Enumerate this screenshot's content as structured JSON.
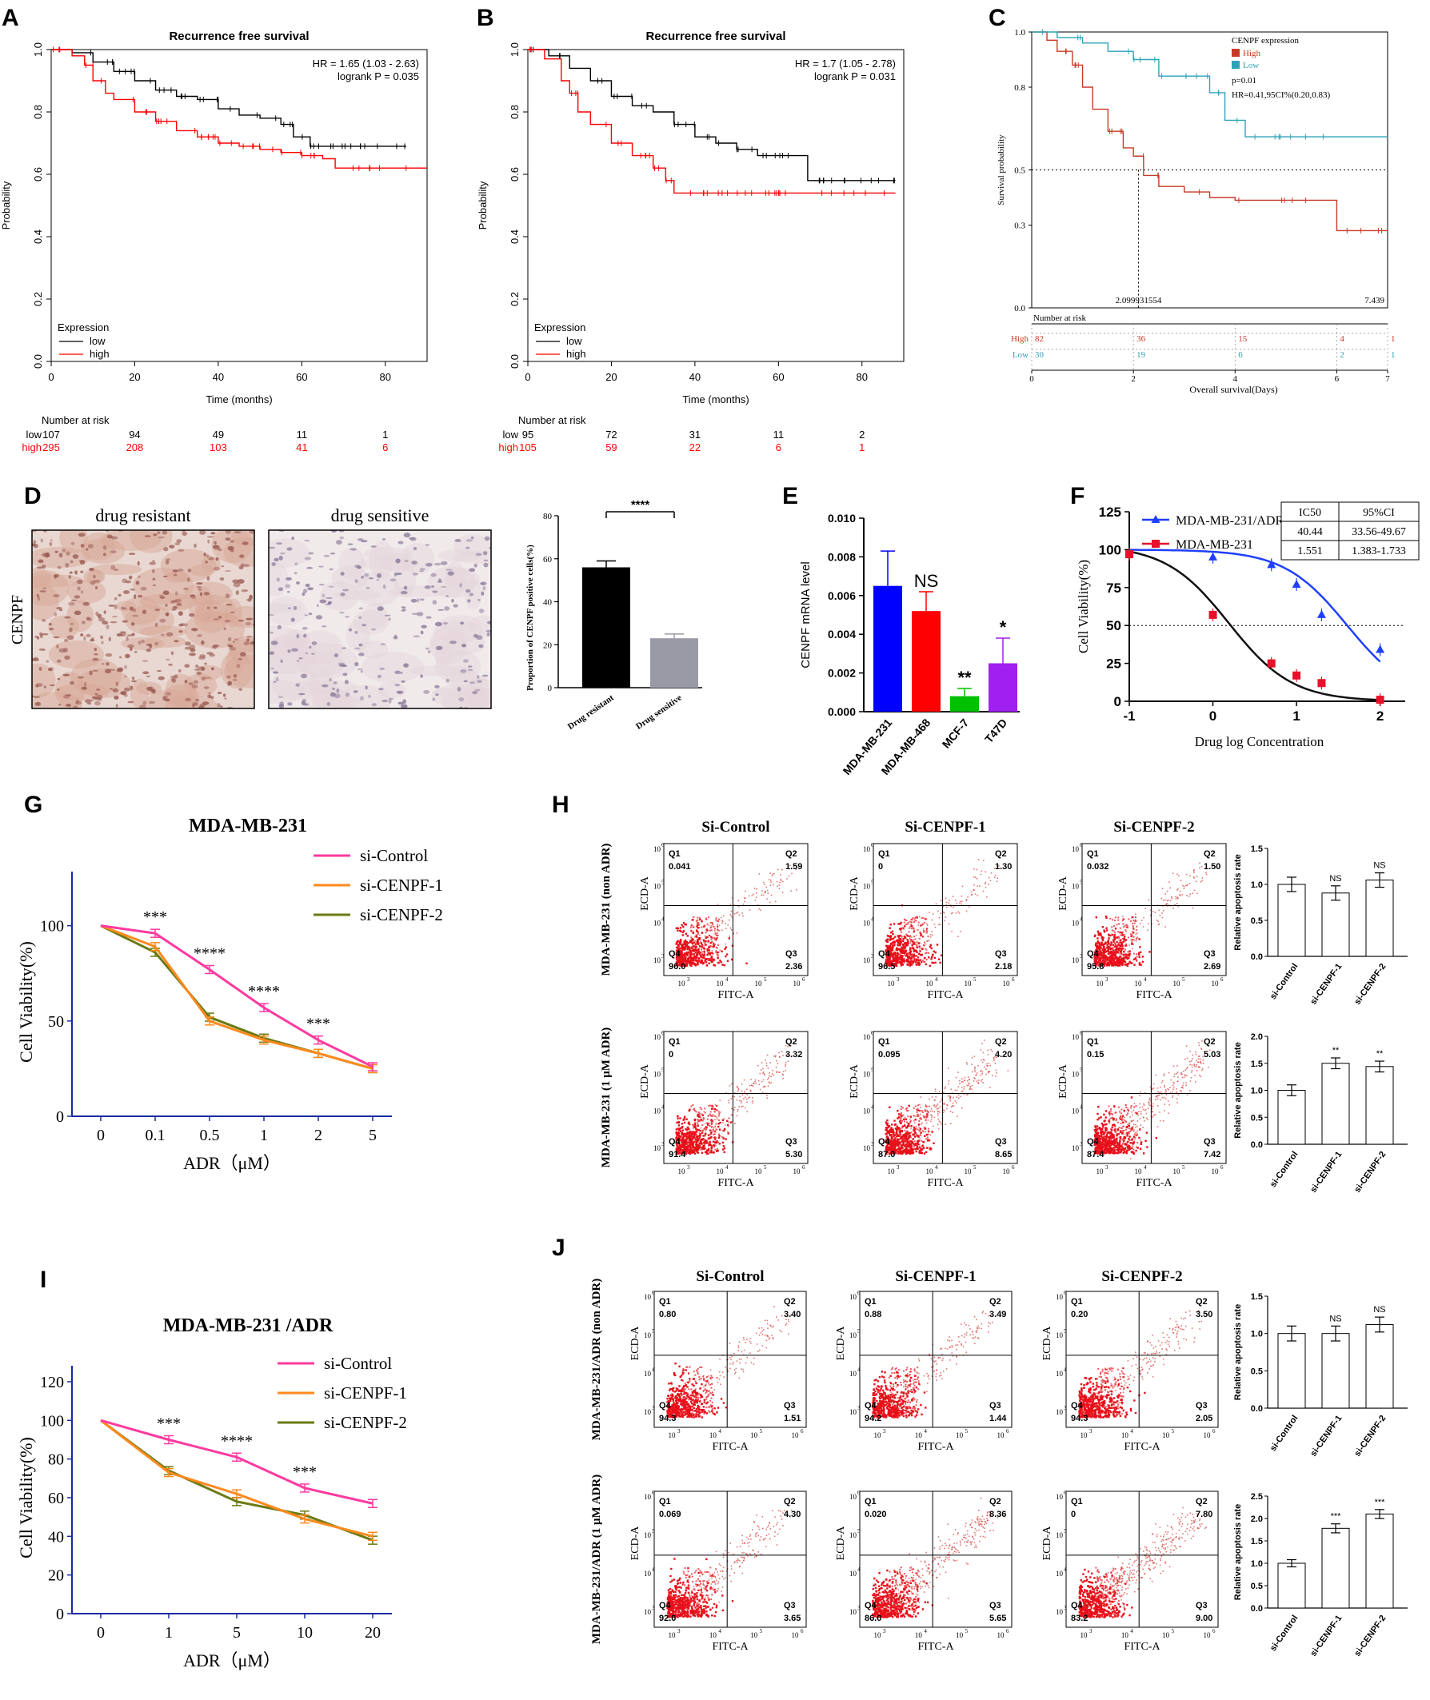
{
  "panels": {
    "A": {
      "letter": "A",
      "chart_data": {
        "type": "line",
        "title": "Recurrence free survival",
        "xlabel": "Time (months)",
        "ylabel": "Probability",
        "xlim": [
          0,
          90
        ],
        "ylim": [
          0,
          1
        ],
        "xticks": [
          "0",
          "20",
          "40",
          "60",
          "80"
        ],
        "yticks": [
          "0.0",
          "0.2",
          "0.4",
          "0.6",
          "0.8",
          "1.0"
        ],
        "hr_text": "HR = 1.65 (1.03 - 2.63)",
        "p_text": "logrank P = 0.035",
        "legend_title": "Expression",
        "series": [
          {
            "name": "low",
            "color": "#000000",
            "x": [
              0,
              5,
              10,
              15,
              20,
              25,
              30,
              35,
              40,
              45,
              50,
              55,
              58,
              62,
              70,
              85
            ],
            "y": [
              1.0,
              0.99,
              0.96,
              0.93,
              0.9,
              0.87,
              0.85,
              0.84,
              0.81,
              0.79,
              0.78,
              0.76,
              0.72,
              0.69,
              0.69,
              0.69
            ]
          },
          {
            "name": "high",
            "color": "#ff0000",
            "x": [
              0,
              5,
              8,
              10,
              13,
              15,
              20,
              25,
              30,
              35,
              40,
              45,
              50,
              55,
              60,
              65,
              68,
              75,
              90
            ],
            "y": [
              1.0,
              0.98,
              0.95,
              0.9,
              0.86,
              0.84,
              0.8,
              0.77,
              0.74,
              0.72,
              0.7,
              0.69,
              0.68,
              0.67,
              0.66,
              0.65,
              0.62,
              0.62,
              0.62
            ]
          }
        ],
        "risk_table": {
          "label": "Number at risk",
          "rows": [
            {
              "name": "low",
              "values": [
                "107",
                "94",
                "49",
                "11",
                "1"
              ]
            },
            {
              "name": "high",
              "values": [
                "295",
                "208",
                "103",
                "41",
                "6"
              ]
            }
          ]
        }
      }
    },
    "B": {
      "letter": "B",
      "chart_data": {
        "type": "line",
        "title": "Recurrence free survival",
        "xlabel": "Time (months)",
        "ylabel": "Probability",
        "xlim": [
          0,
          90
        ],
        "ylim": [
          0,
          1
        ],
        "xticks": [
          "0",
          "20",
          "40",
          "60",
          "80"
        ],
        "yticks": [
          "0.0",
          "0.2",
          "0.4",
          "0.6",
          "0.8",
          "1.0"
        ],
        "hr_text": "HR = 1.7 (1.05 - 2.78)",
        "p_text": "logrank P = 0.031",
        "legend_title": "Expression",
        "series": [
          {
            "name": "low",
            "color": "#000000",
            "x": [
              0,
              5,
              10,
              15,
              20,
              25,
              30,
              35,
              40,
              45,
              50,
              55,
              60,
              65,
              67,
              75,
              88
            ],
            "y": [
              1.0,
              0.98,
              0.94,
              0.9,
              0.85,
              0.82,
              0.8,
              0.76,
              0.72,
              0.7,
              0.68,
              0.66,
              0.66,
              0.66,
              0.58,
              0.58,
              0.58
            ]
          },
          {
            "name": "high",
            "color": "#ff0000",
            "x": [
              0,
              4,
              8,
              10,
              12,
              15,
              20,
              25,
              30,
              33,
              35,
              40,
              50,
              60,
              70,
              88
            ],
            "y": [
              1.0,
              0.97,
              0.9,
              0.86,
              0.8,
              0.76,
              0.7,
              0.66,
              0.62,
              0.58,
              0.54,
              0.54,
              0.54,
              0.54,
              0.54,
              0.54
            ]
          }
        ],
        "risk_table": {
          "label": "Number at risk",
          "rows": [
            {
              "name": "low",
              "values": [
                "95",
                "72",
                "31",
                "11",
                "2"
              ]
            },
            {
              "name": "high",
              "values": [
                "105",
                "59",
                "22",
                "6",
                "1"
              ]
            }
          ]
        }
      }
    },
    "C": {
      "letter": "C",
      "chart_data": {
        "type": "line",
        "title": "",
        "xlabel": "Overall survival(Days)",
        "ylabel": "Survival probability",
        "xlim": [
          0,
          7
        ],
        "ylim": [
          0,
          1
        ],
        "xticks": [
          "0",
          "2",
          "4",
          "6",
          "7"
        ],
        "yticks": [
          "0.0",
          "0.3",
          "0.5",
          "0.8",
          "1.0"
        ],
        "legend_title": "CENPF expression",
        "p_text": "p=0.01",
        "hr_text": "HR=0.41,95CI%(0.20,0.83)",
        "median_labels": [
          "2.099931554",
          "7.439"
        ],
        "series": [
          {
            "name": "High",
            "color": "#c83a28",
            "x": [
              0,
              0.3,
              0.5,
              0.8,
              1.0,
              1.2,
              1.5,
              1.8,
              2.0,
              2.2,
              2.5,
              3.0,
              3.5,
              4.0,
              5.0,
              5.9,
              6.0,
              6.5,
              7.0
            ],
            "y": [
              1.0,
              0.97,
              0.93,
              0.88,
              0.8,
              0.72,
              0.64,
              0.58,
              0.55,
              0.48,
              0.44,
              0.42,
              0.4,
              0.39,
              0.39,
              0.39,
              0.28,
              0.28,
              0.28
            ]
          },
          {
            "name": "Low",
            "color": "#2ea3b8",
            "x": [
              0,
              0.5,
              1.0,
              1.5,
              2.0,
              2.5,
              3.0,
              3.5,
              3.8,
              4.2,
              5.0,
              6.0,
              7.0
            ],
            "y": [
              1.0,
              0.98,
              0.96,
              0.93,
              0.9,
              0.84,
              0.84,
              0.78,
              0.68,
              0.62,
              0.62,
              0.62,
              0.62
            ]
          }
        ],
        "risk_table": {
          "label": "Number at risk",
          "rows": [
            {
              "name": "High",
              "values": [
                "82",
                "36",
                "15",
                "4",
                "1"
              ]
            },
            {
              "name": "Low",
              "values": [
                "30",
                "19",
                "6",
                "2",
                "1"
              ]
            }
          ]
        }
      }
    },
    "D": {
      "letter": "D",
      "stain_label": "CENPF",
      "img_titles": [
        "drug resistant",
        "drug sensitive"
      ],
      "chart_data": {
        "type": "bar",
        "categories": [
          "Drug resistant",
          "Drug sensitive"
        ],
        "values": [
          56,
          23
        ],
        "errors": [
          3,
          2
        ],
        "colors": [
          "#000000",
          "#9a9aa6"
        ],
        "ylabel": "Proportion of CENPF positive cells(%)",
        "ylim": [
          0,
          80
        ],
        "yticks": [
          "0",
          "20",
          "40",
          "60",
          "80"
        ],
        "significance": "****"
      }
    },
    "E": {
      "letter": "E",
      "chart_data": {
        "type": "bar",
        "categories": [
          "MDA-MB-231",
          "MDA-MB-468",
          "MCF-7",
          "T47D"
        ],
        "values": [
          0.0065,
          0.0052,
          0.0008,
          0.0025
        ],
        "errors": [
          0.0018,
          0.001,
          0.0004,
          0.0013
        ],
        "colors": [
          "#0000ff",
          "#ff0000",
          "#00c000",
          "#a020f0"
        ],
        "ylabel": "CENPF mRNA level",
        "ylim": [
          0,
          0.01
        ],
        "yticks": [
          "0.000",
          "0.002",
          "0.004",
          "0.006",
          "0.008",
          "0.010"
        ],
        "annotations": [
          "",
          "NS",
          "**",
          "*"
        ]
      }
    },
    "F": {
      "letter": "F",
      "chart_data": {
        "type": "line",
        "xlabel": "Drug log Concentration",
        "ylabel": "Cell Viability(%)",
        "xlim": [
          -1,
          2.3
        ],
        "ylim": [
          0,
          125
        ],
        "xticks": [
          "-1",
          "0",
          "1",
          "2"
        ],
        "yticks": [
          "0",
          "25",
          "50",
          "75",
          "100",
          "125"
        ],
        "series": [
          {
            "name": "MDA-MB-231/ADR",
            "color": "#1f3fff",
            "marker": "triangle",
            "x": [
              -1,
              0,
              0.7,
              1,
              1.3,
              2
            ],
            "y": [
              97,
              95,
              90,
              77,
              57,
              34
            ],
            "ic50_log": 1.607
          },
          {
            "name": "MDA-MB-231",
            "color": "#e8102a",
            "marker": "square",
            "x": [
              -1,
              0,
              0.7,
              1,
              1.3,
              2
            ],
            "y": [
              97,
              57,
              25,
              17,
              12,
              1
            ],
            "ic50_log": 0.191
          }
        ],
        "table": {
          "headers": [
            "IC50",
            "95%CI"
          ],
          "rows": [
            [
              "40.44",
              "33.56-49.67"
            ],
            [
              "1.551",
              "1.383-1.733"
            ]
          ]
        }
      }
    },
    "G": {
      "letter": "G",
      "chart_data": {
        "type": "line",
        "title": "MDA-MB-231",
        "xlabel": "ADR（μM）",
        "ylabel": "Cell Viability(%)",
        "categories": [
          "0",
          "0.1",
          "0.5",
          "1",
          "2",
          "5"
        ],
        "ylim": [
          0,
          120
        ],
        "yticks": [
          "0",
          "50",
          "100"
        ],
        "series": [
          {
            "name": "si-Control",
            "color": "#ff3aa0",
            "values": [
              100,
              96,
              77,
              57,
              40,
              26
            ]
          },
          {
            "name": "si-CENPF-1",
            "color": "#ff8a1e",
            "values": [
              100,
              89,
              50,
              40,
              33,
              25
            ]
          },
          {
            "name": "si-CENPF-2",
            "color": "#6b7a12",
            "values": [
              100,
              86,
              52,
              41,
              33,
              25
            ]
          }
        ],
        "significance": [
          "",
          "***",
          "****",
          "****",
          "***",
          ""
        ]
      }
    },
    "H": {
      "letter": "H",
      "col_titles": [
        "Si-Control",
        "Si-CENPF-1",
        "Si-CENPF-2"
      ],
      "row_labels": [
        "MDA-MB-231 (non ADR)",
        "MDA-MB-231 (1 μM ADR)"
      ],
      "axis_x": "FITC-A",
      "axis_y": "ECD-A",
      "plots": [
        [
          [
            "0.041",
            "1.59",
            "96.0",
            "2.36"
          ],
          [
            "0",
            "1.30",
            "96.5",
            "2.18"
          ],
          [
            "0.032",
            "1.50",
            "95.8",
            "2.69"
          ]
        ],
        [
          [
            "0",
            "3.32",
            "91.4",
            "5.30"
          ],
          [
            "0.095",
            "4.20",
            "87.0",
            "8.65"
          ],
          [
            "0.15",
            "5.03",
            "87.4",
            "7.42"
          ]
        ]
      ],
      "bar_charts": [
        {
          "type": "bar",
          "ylabel": "Relative apoptosis rate",
          "categories": [
            "si-Control",
            "si-CENPF-1",
            "si-CENPF-2"
          ],
          "values": [
            1.0,
            0.88,
            1.06
          ],
          "errors": [
            0.1,
            0.1,
            0.1
          ],
          "ylim": [
            0,
            1.5
          ],
          "yticks": [
            "0.0",
            "0.5",
            "1.0",
            "1.5"
          ],
          "annotations": [
            "",
            "NS",
            "NS"
          ]
        },
        {
          "type": "bar",
          "ylabel": "Relative apoptosis rate",
          "categories": [
            "si-Control",
            "si-CENPF-1",
            "si-CENPF-2"
          ],
          "values": [
            1.0,
            1.5,
            1.44
          ],
          "errors": [
            0.1,
            0.1,
            0.1
          ],
          "ylim": [
            0,
            2.0
          ],
          "yticks": [
            "0.0",
            "0.5",
            "1.0",
            "1.5",
            "2.0"
          ],
          "annotations": [
            "",
            "**",
            "**"
          ]
        }
      ]
    },
    "I": {
      "letter": "I",
      "chart_data": {
        "type": "line",
        "title": "MDA-MB-231 /ADR",
        "xlabel": "ADR（μM）",
        "ylabel": "Cell Viability(%)",
        "categories": [
          "0",
          "1",
          "5",
          "10",
          "20"
        ],
        "ylim": [
          0,
          120
        ],
        "yticks": [
          "0",
          "20",
          "40",
          "60",
          "80",
          "100",
          "120"
        ],
        "series": [
          {
            "name": "si-Control",
            "color": "#ff3aa0",
            "values": [
              100,
              90,
              81,
              65,
              57
            ]
          },
          {
            "name": "si-CENPF-1",
            "color": "#ff8a1e",
            "values": [
              100,
              73,
              62,
              49,
              40
            ]
          },
          {
            "name": "si-CENPF-2",
            "color": "#6b7a12",
            "values": [
              100,
              74,
              58,
              51,
              38
            ]
          }
        ],
        "significance": [
          "",
          "***",
          "****",
          "***",
          ""
        ]
      }
    },
    "J": {
      "letter": "J",
      "col_titles": [
        "Si-Control",
        "Si-CENPF-1",
        "Si-CENPF-2"
      ],
      "row_labels": [
        "MDA-MB-231/ADR (non ADR)",
        "MDA-MB-231/ADR (1 μM ADR)"
      ],
      "axis_x": "FITC-A",
      "axis_y": "ECD-A",
      "plots": [
        [
          [
            "0.80",
            "3.40",
            "94.3",
            "1.51"
          ],
          [
            "0.88",
            "3.49",
            "94.2",
            "1.44"
          ],
          [
            "0.20",
            "3.50",
            "94.3",
            "2.05"
          ]
        ],
        [
          [
            "0.069",
            "4.30",
            "92.0",
            "3.65"
          ],
          [
            "0.020",
            "8.36",
            "86.0",
            "5.65"
          ],
          [
            "0",
            "7.80",
            "83.2",
            "9.00"
          ]
        ]
      ],
      "bar_charts": [
        {
          "type": "bar",
          "ylabel": "Relative apoptosis rate",
          "categories": [
            "si-Control",
            "si-CENPF-1",
            "si-CENPF-2"
          ],
          "values": [
            1.0,
            1.0,
            1.12
          ],
          "errors": [
            0.1,
            0.1,
            0.1
          ],
          "ylim": [
            0,
            1.5
          ],
          "yticks": [
            "0.0",
            "0.5",
            "1.0",
            "1.5"
          ],
          "annotations": [
            "",
            "NS",
            "NS"
          ]
        },
        {
          "type": "bar",
          "ylabel": "Relative apoptosis rate",
          "categories": [
            "si-Control",
            "si-CENPF-1",
            "si-CENPF-2"
          ],
          "values": [
            1.0,
            1.78,
            2.1
          ],
          "errors": [
            0.08,
            0.1,
            0.1
          ],
          "ylim": [
            0,
            2.5
          ],
          "yticks": [
            "0.0",
            "0.5",
            "1.0",
            "1.5",
            "2.0",
            "2.5"
          ],
          "annotations": [
            "",
            "***",
            "***"
          ]
        }
      ]
    }
  }
}
